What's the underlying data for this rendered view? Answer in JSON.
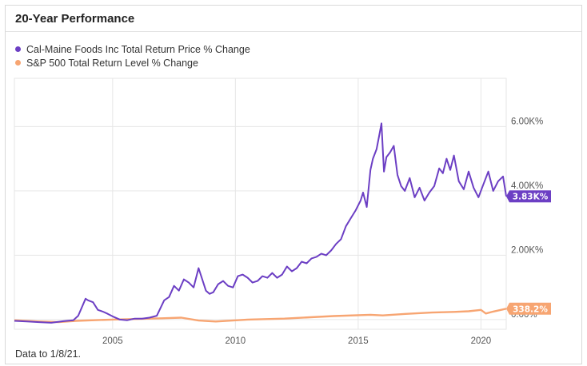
{
  "title": "20-Year Performance",
  "footer": "Data to 1/8/21.",
  "chart_data": {
    "type": "line",
    "title": "20-Year Performance",
    "xlabel": "",
    "ylabel": "",
    "grid": true,
    "legend_position": "top-left",
    "x_ticks": [
      "2005",
      "2010",
      "2015",
      "2020"
    ],
    "y_ticks": [
      "0.00%",
      "2.00K%",
      "4.00K%",
      "6.00K%"
    ],
    "xlim": [
      2001.0,
      2021.03
    ],
    "ylim": [
      -300,
      7500
    ],
    "series": [
      {
        "name": "Cal-Maine Foods Inc Total Return Price % Change",
        "color": "#6c3fc4",
        "end_label": "3.83K%",
        "x": [
          2001.0,
          2001.5,
          2002.0,
          2002.5,
          2003.0,
          2003.4,
          2003.6,
          2003.9,
          2004.0,
          2004.2,
          2004.4,
          2004.6,
          2004.8,
          2005.0,
          2005.3,
          2005.6,
          2005.9,
          2006.2,
          2006.5,
          2006.8,
          2007.1,
          2007.3,
          2007.5,
          2007.7,
          2007.9,
          2008.1,
          2008.3,
          2008.5,
          2008.65,
          2008.8,
          2008.95,
          2009.1,
          2009.3,
          2009.5,
          2009.7,
          2009.9,
          2010.1,
          2010.3,
          2010.5,
          2010.7,
          2010.9,
          2011.1,
          2011.3,
          2011.5,
          2011.7,
          2011.9,
          2012.1,
          2012.3,
          2012.5,
          2012.7,
          2012.9,
          2013.1,
          2013.3,
          2013.5,
          2013.7,
          2013.9,
          2014.1,
          2014.3,
          2014.5,
          2014.7,
          2014.9,
          2015.1,
          2015.2,
          2015.35,
          2015.5,
          2015.6,
          2015.75,
          2015.85,
          2015.95,
          2016.05,
          2016.15,
          2016.3,
          2016.45,
          2016.6,
          2016.75,
          2016.9,
          2017.1,
          2017.3,
          2017.5,
          2017.7,
          2017.9,
          2018.1,
          2018.3,
          2018.45,
          2018.6,
          2018.75,
          2018.9,
          2019.1,
          2019.3,
          2019.5,
          2019.7,
          2019.9,
          2020.1,
          2020.3,
          2020.5,
          2020.7,
          2020.9,
          2021.03
        ],
        "y": [
          -40,
          -60,
          -80,
          -100,
          -50,
          -20,
          120,
          650,
          600,
          540,
          300,
          250,
          180,
          100,
          0,
          -20,
          30,
          30,
          60,
          120,
          600,
          700,
          1050,
          900,
          1250,
          1150,
          1000,
          1600,
          1250,
          900,
          800,
          850,
          1100,
          1200,
          1050,
          1000,
          1350,
          1400,
          1300,
          1150,
          1200,
          1350,
          1300,
          1450,
          1300,
          1400,
          1650,
          1500,
          1600,
          1800,
          1750,
          1900,
          1950,
          2050,
          2000,
          2150,
          2350,
          2500,
          2900,
          3150,
          3400,
          3700,
          3950,
          3500,
          4650,
          5000,
          5300,
          5700,
          6100,
          4600,
          5050,
          5200,
          5400,
          4500,
          4150,
          4000,
          4400,
          3800,
          4100,
          3700,
          3950,
          4150,
          4700,
          4550,
          5000,
          4650,
          5100,
          4300,
          4050,
          4600,
          4100,
          3800,
          4200,
          4600,
          4000,
          4300,
          4450,
          3830
        ]
      },
      {
        "name": "S&P 500 Total Return Level % Change",
        "color": "#f7a572",
        "end_label": "338.2%",
        "x": [
          2001.0,
          2002.0,
          2002.8,
          2003.5,
          2005.0,
          2007.0,
          2007.8,
          2008.5,
          2009.2,
          2010.5,
          2012.0,
          2014.0,
          2015.5,
          2016.0,
          2017.0,
          2018.0,
          2018.9,
          2019.5,
          2020.0,
          2020.2,
          2020.5,
          2021.03
        ],
        "y": [
          -20,
          -60,
          -80,
          -40,
          0,
          40,
          60,
          -30,
          -60,
          0,
          30,
          110,
          150,
          130,
          180,
          220,
          240,
          260,
          300,
          190,
          250,
          338.2
        ]
      }
    ]
  }
}
